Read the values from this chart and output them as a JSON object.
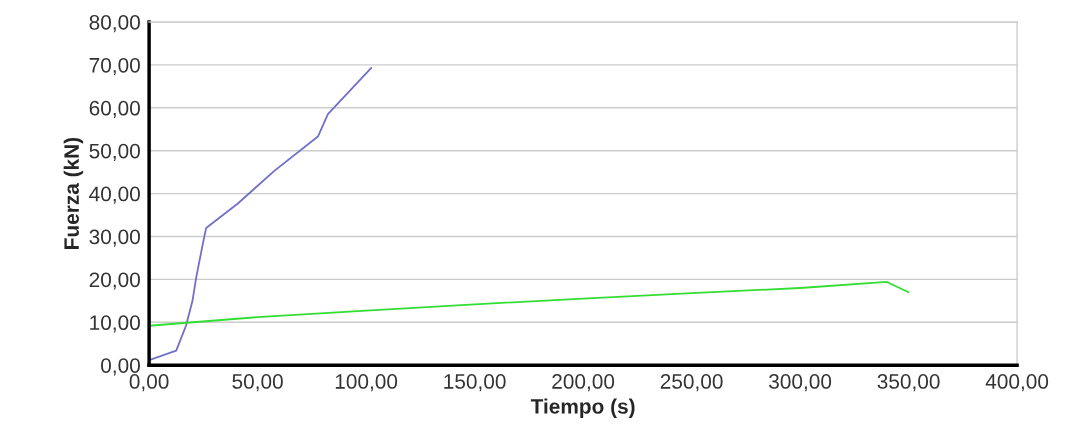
{
  "chart_data": {
    "type": "line",
    "xlabel": "Tiempo (s)",
    "ylabel": "Fuerza (kN)",
    "xlim": [
      0,
      400
    ],
    "ylim": [
      0,
      80
    ],
    "xticks": [
      {
        "value": 0,
        "label": "0,00"
      },
      {
        "value": 50,
        "label": "50,00"
      },
      {
        "value": 100,
        "label": "100,00"
      },
      {
        "value": 150,
        "label": "150,00"
      },
      {
        "value": 200,
        "label": "200,00"
      },
      {
        "value": 250,
        "label": "250,00"
      },
      {
        "value": 300,
        "label": "300,00"
      },
      {
        "value": 350,
        "label": "350,00"
      },
      {
        "value": 400,
        "label": "400,00"
      }
    ],
    "yticks": [
      {
        "value": 0,
        "label": "0,00"
      },
      {
        "value": 10,
        "label": "10,00"
      },
      {
        "value": 20,
        "label": "20,00"
      },
      {
        "value": 30,
        "label": "30,00"
      },
      {
        "value": 40,
        "label": "40,00"
      },
      {
        "value": 50,
        "label": "50,00"
      },
      {
        "value": 60,
        "label": "60,00"
      },
      {
        "value": 70,
        "label": "70,00"
      },
      {
        "value": 80,
        "label": "80,00"
      }
    ],
    "grid": "y",
    "marker": "none",
    "line_style": "solid",
    "series": [
      {
        "color": "#7070c8",
        "x": [
          0,
          12.5,
          17,
          20,
          21.7,
          24.8,
          26.3,
          40.9,
          57.7,
          77.8,
          82.4,
          102.4
        ],
        "values": [
          1.2,
          3.4,
          9.2,
          15,
          20.4,
          28.4,
          32,
          37.7,
          45.3,
          53.3,
          58.5,
          69.3
        ]
      },
      {
        "color": "#33dd33",
        "x": [
          0,
          50,
          100,
          150,
          200,
          250,
          300,
          340,
          350
        ],
        "values": [
          9.2,
          11.2,
          12.7,
          14.2,
          15.5,
          16.8,
          18,
          19.4,
          17
        ]
      }
    ]
  }
}
